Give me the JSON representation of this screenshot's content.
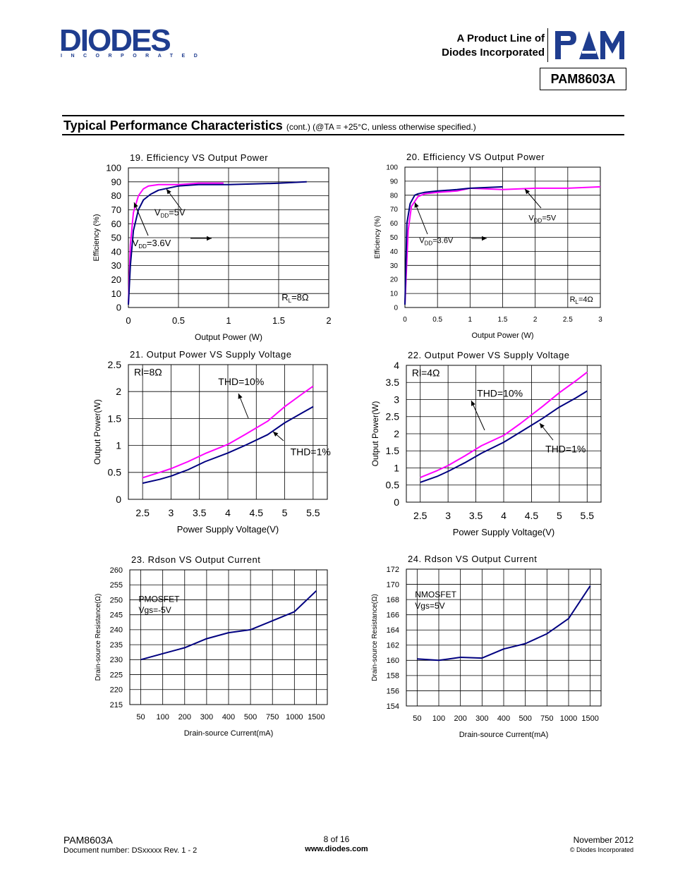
{
  "header": {
    "logo_text": "DIODES",
    "logo_subtext": "INCORPORATED",
    "product_line_1": "A Product Line of",
    "product_line_2": "Diodes Incorporated",
    "pam_logo_text": "PAM",
    "part_number": "PAM8603A"
  },
  "section": {
    "title": "Typical Performance Characteristics",
    "note": "(cont.) (@TA = +25°C, unless otherwise specified.)"
  },
  "footer": {
    "part": "PAM8603A",
    "doc_number": "Document number: DSxxxxx Rev. 1 - 2",
    "page": "8 of 16",
    "url": "www.diodes.com",
    "date": "November 2012",
    "copyright": "© Diodes Incorporated"
  },
  "colors": {
    "magenta": "#ff00ff",
    "navy": "#000080",
    "brand_blue": "#1f3d8f"
  },
  "chart_data": [
    {
      "id": "c19",
      "type": "line",
      "title": "19. Efficiency VS Output Power",
      "xlabel": "Output Power (W)",
      "ylabel": "Efficiency (%)",
      "xlim": [
        0,
        2
      ],
      "ylim": [
        0,
        100
      ],
      "xticks": [
        0,
        0.5,
        1,
        1.5,
        2
      ],
      "xtick_labels": [
        "0",
        "0.5",
        "1",
        "1.5",
        "2"
      ],
      "yticks": [
        0,
        10,
        20,
        30,
        40,
        50,
        60,
        70,
        80,
        90,
        100
      ],
      "ytick_labels": [
        "0",
        "10",
        "20",
        "30",
        "40",
        "50",
        "60",
        "70",
        "80",
        "90",
        "100"
      ],
      "grid": true,
      "series": [
        {
          "label": "VDD=5V",
          "color": "#ff00ff",
          "x": [
            0.0,
            0.02,
            0.05,
            0.1,
            0.15,
            0.2,
            0.3,
            0.5,
            0.7,
            0.95
          ],
          "y": [
            2,
            45,
            68,
            80,
            85,
            87,
            88,
            88,
            89,
            89
          ]
        },
        {
          "label": "VDD=3.6V",
          "color": "#000080",
          "x": [
            0.0,
            0.02,
            0.05,
            0.1,
            0.15,
            0.22,
            0.3,
            0.5,
            0.7,
            1.0,
            1.5,
            1.78
          ],
          "y": [
            2,
            30,
            55,
            70,
            77,
            81,
            84,
            87,
            88,
            88,
            89,
            90
          ]
        }
      ],
      "annotations": [
        {
          "text": "VDD=5V",
          "x": 0.26,
          "y": 66
        },
        {
          "text": "VDD=3.6V",
          "x": 0.04,
          "y": 44
        },
        {
          "text": "RL=8Ω",
          "x": 1.53,
          "y": 5
        }
      ]
    },
    {
      "id": "c20",
      "type": "line",
      "title": "20. Efficiency VS Output Power",
      "xlabel": "Output Power (W)",
      "ylabel": "Efficiency (%)",
      "xlim": [
        0,
        3
      ],
      "ylim": [
        0,
        100
      ],
      "xticks": [
        0,
        0.5,
        1,
        1.5,
        2,
        2.5,
        3
      ],
      "xtick_labels": [
        "0",
        "0.5",
        "1",
        "1.5",
        "2",
        "2.5",
        "3"
      ],
      "yticks": [
        0,
        10,
        20,
        30,
        40,
        50,
        60,
        70,
        80,
        90,
        100
      ],
      "ytick_labels": [
        "0",
        "10",
        "20",
        "30",
        "40",
        "50",
        "60",
        "70",
        "80",
        "90",
        "100"
      ],
      "grid": true,
      "series": [
        {
          "label": "VDD=5V",
          "color": "#ff00ff",
          "x": [
            0.0,
            0.05,
            0.1,
            0.2,
            0.3,
            0.5,
            0.8,
            1.0,
            1.5,
            2.0,
            2.5,
            3.0
          ],
          "y": [
            2,
            55,
            72,
            79,
            81,
            82,
            83,
            85,
            84,
            85,
            85,
            86
          ]
        },
        {
          "label": "VDD=3.6V",
          "color": "#000080",
          "x": [
            0.0,
            0.03,
            0.08,
            0.15,
            0.2,
            0.3,
            0.5,
            0.8,
            1.0,
            1.5
          ],
          "y": [
            2,
            60,
            74,
            80,
            81,
            82,
            83,
            84,
            85,
            86
          ]
        }
      ],
      "annotations": [
        {
          "text": "VDD=5V",
          "x": 1.9,
          "y": 62
        },
        {
          "text": "VDD=3.6V",
          "x": 0.22,
          "y": 46
        },
        {
          "text": "RL=4Ω",
          "x": 2.53,
          "y": 4
        }
      ]
    },
    {
      "id": "c21",
      "type": "line",
      "title": "21. Output Power VS Supply Voltage",
      "xlabel": "Power Supply Voltage(V)",
      "ylabel": "Output Power(W)",
      "xlim": [
        2.25,
        5.75
      ],
      "ylim": [
        0,
        2.5
      ],
      "xticks": [
        2.5,
        3,
        3.5,
        4,
        4.5,
        5,
        5.5
      ],
      "xtick_labels": [
        "2.5",
        "3",
        "3.5",
        "4",
        "4.5",
        "5",
        "5.5"
      ],
      "yticks": [
        0,
        0.5,
        1,
        1.5,
        2,
        2.5
      ],
      "ytick_labels": [
        "0",
        "0.5",
        "1",
        "1.5",
        "2",
        "2.5"
      ],
      "grid": true,
      "series": [
        {
          "label": "THD=10%",
          "color": "#ff00ff",
          "x": [
            2.5,
            2.8,
            3.0,
            3.3,
            3.6,
            4.0,
            4.3,
            4.7,
            5.0,
            5.3,
            5.5
          ],
          "y": [
            0.4,
            0.5,
            0.57,
            0.7,
            0.85,
            1.02,
            1.2,
            1.45,
            1.72,
            1.95,
            2.1
          ]
        },
        {
          "label": "THD=1%",
          "color": "#000080",
          "x": [
            2.5,
            2.8,
            3.0,
            3.3,
            3.6,
            4.0,
            4.3,
            4.7,
            5.0,
            5.3,
            5.5
          ],
          "y": [
            0.3,
            0.37,
            0.43,
            0.55,
            0.7,
            0.86,
            1.0,
            1.2,
            1.42,
            1.6,
            1.72
          ]
        }
      ],
      "annotations": [
        {
          "text": "Rl=8Ω",
          "x": 2.35,
          "y": 2.3
        },
        {
          "text": "THD=10%",
          "x": 3.83,
          "y": 2.12
        },
        {
          "text": "THD=1%",
          "x": 5.1,
          "y": 0.82
        }
      ]
    },
    {
      "id": "c22",
      "type": "line",
      "title": "22. Output Power VS Supply Voltage",
      "xlabel": "Power Supply Voltage(V)",
      "ylabel": "Output Power(W)",
      "xlim": [
        2.25,
        5.75
      ],
      "ylim": [
        0,
        4
      ],
      "xticks": [
        2.5,
        3,
        3.5,
        4,
        4.5,
        5,
        5.5
      ],
      "xtick_labels": [
        "2.5",
        "3",
        "3.5",
        "4",
        "4.5",
        "5",
        "5.5"
      ],
      "yticks": [
        0,
        0.5,
        1,
        1.5,
        2,
        2.5,
        3,
        3.5,
        4
      ],
      "ytick_labels": [
        "0",
        "0.5",
        "1",
        "1.5",
        "2",
        "2.5",
        "3",
        "3.5",
        "4"
      ],
      "grid": true,
      "series": [
        {
          "label": "THD=10%",
          "color": "#ff00ff",
          "x": [
            2.5,
            2.8,
            3.0,
            3.3,
            3.6,
            4.0,
            4.3,
            4.7,
            5.0,
            5.3,
            5.5
          ],
          "y": [
            0.72,
            0.92,
            1.07,
            1.35,
            1.65,
            1.95,
            2.3,
            2.8,
            3.2,
            3.55,
            3.8
          ]
        },
        {
          "label": "THD=1%",
          "color": "#000080",
          "x": [
            2.5,
            2.8,
            3.0,
            3.3,
            3.6,
            4.0,
            4.3,
            4.7,
            5.0,
            5.3,
            5.5
          ],
          "y": [
            0.58,
            0.75,
            0.9,
            1.15,
            1.43,
            1.75,
            2.05,
            2.45,
            2.78,
            3.05,
            3.25
          ]
        }
      ],
      "annotations": [
        {
          "text": "Rl=4Ω",
          "x": 2.35,
          "y": 3.68
        },
        {
          "text": "THD=10%",
          "x": 3.52,
          "y": 3.08
        },
        {
          "text": "THD=1%",
          "x": 4.75,
          "y": 1.45
        }
      ]
    },
    {
      "id": "c23",
      "type": "line",
      "title": "23. Rdson VS Output Current",
      "xlabel": "Drain-source Current(mA)",
      "ylabel": "Drain-source Resistance(Ω)",
      "xlim": [
        -0.5,
        8.5
      ],
      "ylim": [
        215,
        260
      ],
      "xticks": [
        0,
        1,
        2,
        3,
        4,
        5,
        6,
        7,
        8
      ],
      "xtick_labels": [
        "50",
        "100",
        "200",
        "300",
        "400",
        "500",
        "750",
        "1000",
        "1500"
      ],
      "yticks": [
        215,
        220,
        225,
        230,
        235,
        240,
        245,
        250,
        255,
        260
      ],
      "ytick_labels": [
        "215",
        "220",
        "225",
        "230",
        "235",
        "240",
        "245",
        "250",
        "255",
        "260"
      ],
      "grid": true,
      "series": [
        {
          "label": "PMOSFET Vgs=-5V",
          "color": "#000080",
          "x": [
            0,
            1,
            2,
            3,
            4,
            5,
            6,
            7,
            8
          ],
          "y": [
            230,
            232,
            234,
            237,
            239,
            240,
            243,
            246,
            253
          ]
        }
      ],
      "annotations": [
        {
          "text": "PMOSFET",
          "x": -0.1,
          "y": 249.3
        },
        {
          "text": "Vgs=-5V",
          "x": -0.1,
          "y": 245.6
        }
      ]
    },
    {
      "id": "c24",
      "type": "line",
      "title": "24. Rdson VS Output Current",
      "xlabel": "Drain-source Current(mA)",
      "ylabel": "Drain-source Resistance(Ω)",
      "xlim": [
        -0.5,
        8.5
      ],
      "ylim": [
        154,
        172
      ],
      "xticks": [
        0,
        1,
        2,
        3,
        4,
        5,
        6,
        7,
        8
      ],
      "xtick_labels": [
        "50",
        "100",
        "200",
        "300",
        "400",
        "500",
        "750",
        "1000",
        "1500"
      ],
      "yticks": [
        154,
        156,
        158,
        160,
        162,
        164,
        166,
        168,
        170,
        172
      ],
      "ytick_labels": [
        "154",
        "156",
        "158",
        "160",
        "162",
        "164",
        "166",
        "168",
        "170",
        "172"
      ],
      "grid": true,
      "series": [
        {
          "label": "NMOSFET Vgs=5V",
          "color": "#000080",
          "x": [
            0,
            1,
            2,
            3,
            4,
            5,
            6,
            7,
            8
          ],
          "y": [
            160.2,
            160.0,
            160.4,
            160.3,
            161.5,
            162.2,
            163.5,
            165.5,
            169.8
          ]
        }
      ],
      "annotations": [
        {
          "text": "NMOSFET",
          "x": -0.1,
          "y": 168.3
        },
        {
          "text": "Vgs=5V",
          "x": -0.1,
          "y": 166.8
        }
      ]
    }
  ]
}
